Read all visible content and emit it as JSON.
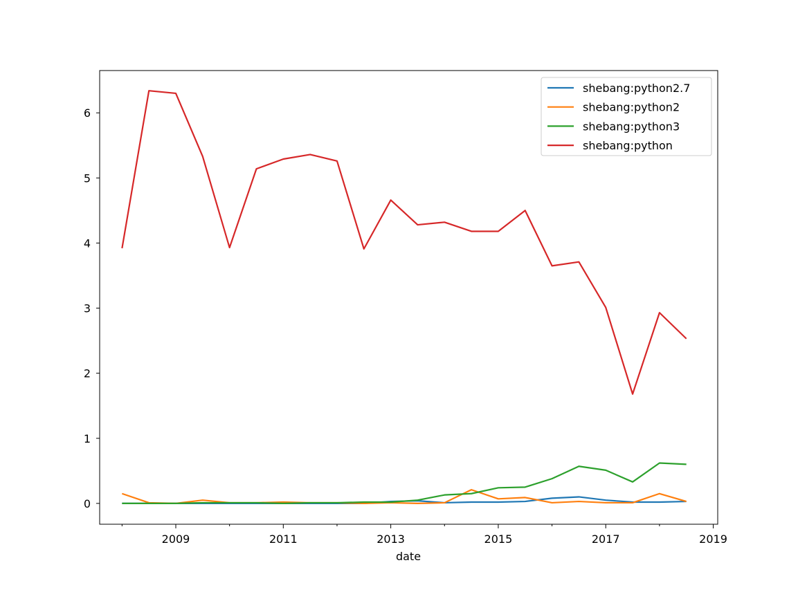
{
  "chart_data": {
    "type": "line",
    "title": "",
    "xlabel": "date",
    "ylabel": "",
    "x": [
      "2008-01",
      "2008-07",
      "2009-01",
      "2009-07",
      "2010-01",
      "2010-07",
      "2011-01",
      "2011-07",
      "2012-01",
      "2012-07",
      "2013-01",
      "2013-07",
      "2014-01",
      "2014-07",
      "2015-01",
      "2015-07",
      "2016-01",
      "2016-07",
      "2017-01",
      "2017-07",
      "2018-01",
      "2018-07"
    ],
    "xlim": [
      "2007-08",
      "2019-02"
    ],
    "ylim": [
      -0.32,
      6.65
    ],
    "x_major_ticks": [
      "2009",
      "2011",
      "2013",
      "2015",
      "2017",
      "2019"
    ],
    "x_minor_ticks": [
      "2008",
      "2010",
      "2012",
      "2014",
      "2016",
      "2018"
    ],
    "y_ticks": [
      "0",
      "1",
      "2",
      "3",
      "4",
      "5",
      "6"
    ],
    "grid": false,
    "legend_position": "top-right",
    "series": [
      {
        "name": "shebang:python2.7",
        "color": "#1f77b4",
        "values": [
          0.0,
          0.0,
          0.0,
          0.0,
          0.0,
          0.0,
          0.0,
          0.0,
          0.0,
          0.0,
          0.03,
          0.04,
          0.01,
          0.02,
          0.02,
          0.03,
          0.08,
          0.1,
          0.05,
          0.02,
          0.02,
          0.03
        ]
      },
      {
        "name": "shebang:python2",
        "color": "#ff7f0e",
        "values": [
          0.15,
          0.01,
          0.0,
          0.05,
          0.01,
          0.01,
          0.02,
          0.01,
          0.01,
          0.0,
          0.01,
          0.0,
          0.01,
          0.21,
          0.07,
          0.09,
          0.01,
          0.03,
          0.01,
          0.01,
          0.15,
          0.03
        ]
      },
      {
        "name": "shebang:python3",
        "color": "#2ca02c",
        "values": [
          0.0,
          0.0,
          0.0,
          0.01,
          0.01,
          0.01,
          0.0,
          0.01,
          0.01,
          0.02,
          0.02,
          0.05,
          0.13,
          0.15,
          0.24,
          0.25,
          0.38,
          0.57,
          0.51,
          0.33,
          0.62,
          0.6
        ]
      },
      {
        "name": "shebang:python",
        "color": "#d62728",
        "values": [
          3.92,
          6.34,
          6.3,
          5.33,
          3.93,
          5.14,
          5.29,
          5.36,
          5.26,
          3.91,
          4.66,
          4.28,
          4.32,
          4.18,
          4.18,
          4.5,
          3.65,
          3.71,
          3.01,
          1.68,
          2.93,
          2.53
        ]
      }
    ]
  }
}
